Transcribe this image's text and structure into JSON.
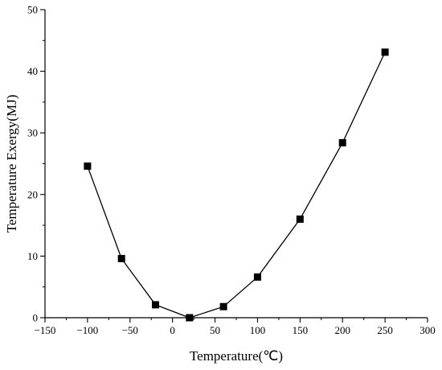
{
  "chart_data": {
    "type": "line",
    "xlabel": "Temperature(℃)",
    "ylabel": "Temperature Exergy(MJ)",
    "xlim": [
      -150,
      300
    ],
    "ylim": [
      0,
      50
    ],
    "xticks": [
      -150,
      -100,
      -50,
      0,
      50,
      100,
      150,
      200,
      250,
      300
    ],
    "yticks": [
      0,
      10,
      20,
      30,
      40,
      50
    ],
    "x_tick_labels": [
      "−150",
      "−100",
      "−50",
      "0",
      "50",
      "100",
      "150",
      "200",
      "250",
      "300"
    ],
    "y_tick_labels": [
      "0",
      "10",
      "20",
      "30",
      "40",
      "50"
    ],
    "grid": false,
    "legend": "none",
    "marker": "square",
    "color": "#000000",
    "series": [
      {
        "x": [
          -100,
          -60,
          -20,
          20,
          60,
          100,
          150,
          200,
          250
        ],
        "values": [
          24.6,
          9.6,
          2.1,
          0.0,
          1.8,
          6.6,
          16.0,
          28.4,
          43.1
        ]
      }
    ]
  }
}
